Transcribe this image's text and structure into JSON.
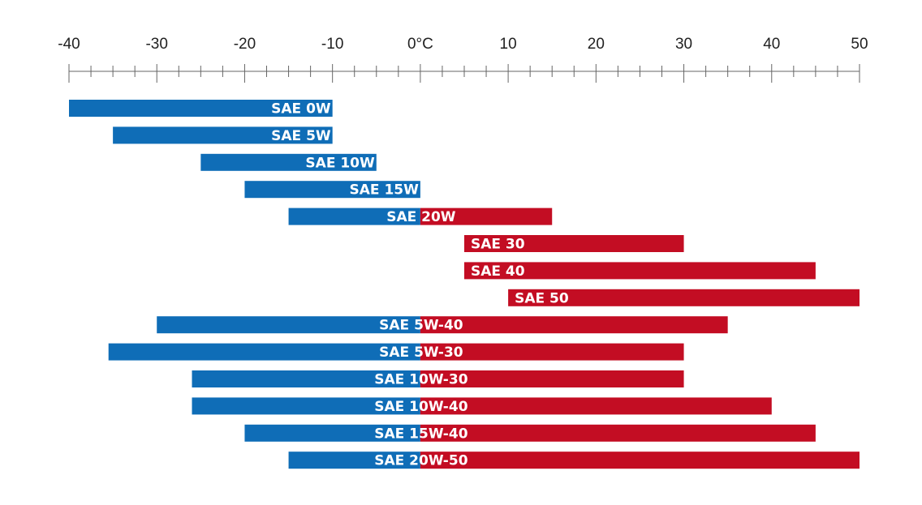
{
  "chart_data": {
    "type": "bar",
    "orientation": "horizontal-range",
    "title": "",
    "xlabel": "",
    "ylabel": "",
    "xlim": [
      -40,
      50
    ],
    "tick_labels": [
      "-40",
      "-30",
      "-20",
      "-10",
      "0°C",
      "10",
      "20",
      "30",
      "40",
      "50"
    ],
    "grid": false,
    "legend": "none",
    "colors": {
      "cold": "#0f6db7",
      "hot": "#c30d23",
      "axis": "#666666",
      "text": "#ffffff"
    },
    "series": [
      {
        "label": "SAE 0W",
        "min": -40,
        "max": -10
      },
      {
        "label": "SAE 5W",
        "min": -35,
        "max": -10
      },
      {
        "label": "SAE 10W",
        "min": -25,
        "max": -5
      },
      {
        "label": "SAE 15W",
        "min": -20,
        "max": 0
      },
      {
        "label": "SAE 20W",
        "min": -15,
        "max": 15
      },
      {
        "label": "SAE 30",
        "min": 5,
        "max": 30
      },
      {
        "label": "SAE 40",
        "min": 5,
        "max": 45
      },
      {
        "label": "SAE 50",
        "min": 10,
        "max": 50
      },
      {
        "label": "SAE 5W-40",
        "min": -30,
        "max": 35
      },
      {
        "label": "SAE 5W-30",
        "min": -35.5,
        "max": 30
      },
      {
        "label": "SAE 10W-30",
        "min": -26,
        "max": 30
      },
      {
        "label": "SAE 10W-40",
        "min": -26,
        "max": 40
      },
      {
        "label": "SAE 15W-40",
        "min": -20,
        "max": 45
      },
      {
        "label": "SAE 20W-50",
        "min": -15,
        "max": 50
      }
    ]
  }
}
